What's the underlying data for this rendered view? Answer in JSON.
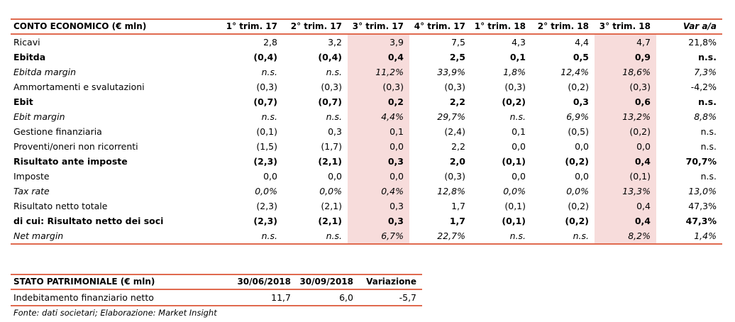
{
  "conto_economico": {
    "headers": [
      "CONTO ECONOMICO (€ mln)",
      "1° trim. 17",
      "2° trim. 17",
      "3° trim. 17",
      "4° trim. 17",
      "1° trim. 18",
      "2° trim. 18",
      "3° trim. 18",
      "Var a/a"
    ],
    "highlight_color": "#f7dcdb",
    "rule_color": "#e06a4f",
    "rows": [
      {
        "label": "Ricavi",
        "style": "normal",
        "values": [
          "2,8",
          "3,2",
          "3,9",
          "7,5",
          "4,3",
          "4,4",
          "4,7",
          "21,8%"
        ]
      },
      {
        "label": "Ebitda",
        "style": "bold",
        "values": [
          "(0,4)",
          "(0,4)",
          "0,4",
          "2,5",
          "0,1",
          "0,5",
          "0,9",
          "n.s."
        ]
      },
      {
        "label": "Ebitda margin",
        "style": "italic",
        "values": [
          "n.s.",
          "n.s.",
          "11,2%",
          "33,9%",
          "1,8%",
          "12,4%",
          "18,6%",
          "7,3%"
        ]
      },
      {
        "label": "Ammortamenti e svalutazioni",
        "style": "normal",
        "values": [
          "(0,3)",
          "(0,3)",
          "(0,3)",
          "(0,3)",
          "(0,3)",
          "(0,2)",
          "(0,3)",
          "-4,2%"
        ]
      },
      {
        "label": "Ebit",
        "style": "bold",
        "values": [
          "(0,7)",
          "(0,7)",
          "0,2",
          "2,2",
          "(0,2)",
          "0,3",
          "0,6",
          "n.s."
        ]
      },
      {
        "label": "Ebit margin",
        "style": "italic",
        "values": [
          "n.s.",
          "n.s.",
          "4,4%",
          "29,7%",
          "n.s.",
          "6,9%",
          "13,2%",
          "8,8%"
        ]
      },
      {
        "label": "Gestione finanziaria",
        "style": "normal",
        "values": [
          "(0,1)",
          "0,3",
          "0,1",
          "(2,4)",
          "0,1",
          "(0,5)",
          "(0,2)",
          "n.s."
        ]
      },
      {
        "label": "Proventi/oneri non ricorrenti",
        "style": "normal",
        "values": [
          "(1,5)",
          "(1,7)",
          "0,0",
          "2,2",
          "0,0",
          "0,0",
          "0,0",
          "n.s."
        ]
      },
      {
        "label": "Risultato ante imposte",
        "style": "bold",
        "values": [
          "(2,3)",
          "(2,1)",
          "0,3",
          "2,0",
          "(0,1)",
          "(0,2)",
          "0,4",
          "70,7%"
        ]
      },
      {
        "label": "Imposte",
        "style": "normal",
        "values": [
          "0,0",
          "0,0",
          "0,0",
          "(0,3)",
          "0,0",
          "0,0",
          "(0,1)",
          "n.s."
        ]
      },
      {
        "label": "Tax rate",
        "style": "italic",
        "values": [
          "0,0%",
          "0,0%",
          "0,4%",
          "12,8%",
          "0,0%",
          "0,0%",
          "13,3%",
          "13,0%"
        ]
      },
      {
        "label": "Risultato netto totale",
        "style": "normal",
        "values": [
          "(2,3)",
          "(2,1)",
          "0,3",
          "1,7",
          "(0,1)",
          "(0,2)",
          "0,4",
          "47,3%"
        ]
      },
      {
        "label": "di cui: Risultato netto dei soci",
        "style": "bold",
        "values": [
          "(2,3)",
          "(2,1)",
          "0,3",
          "1,7",
          "(0,1)",
          "(0,2)",
          "0,4",
          "47,3%"
        ]
      },
      {
        "label": "Net margin",
        "style": "italic",
        "values": [
          "n.s.",
          "n.s.",
          "6,7%",
          "22,7%",
          "n.s.",
          "n.s.",
          "8,2%",
          "1,4%"
        ]
      }
    ]
  },
  "stato_patrimoniale": {
    "headers": [
      "STATO PATRIMONIALE (€ mln)",
      "30/06/2018",
      "30/09/2018",
      "Variazione"
    ],
    "rows": [
      {
        "label": "Indebitamento finanziario netto",
        "values": [
          "11,7",
          "6,0",
          "-5,7"
        ]
      }
    ]
  },
  "source_note": "Fonte: dati societari; Elaborazione: Market Insight"
}
